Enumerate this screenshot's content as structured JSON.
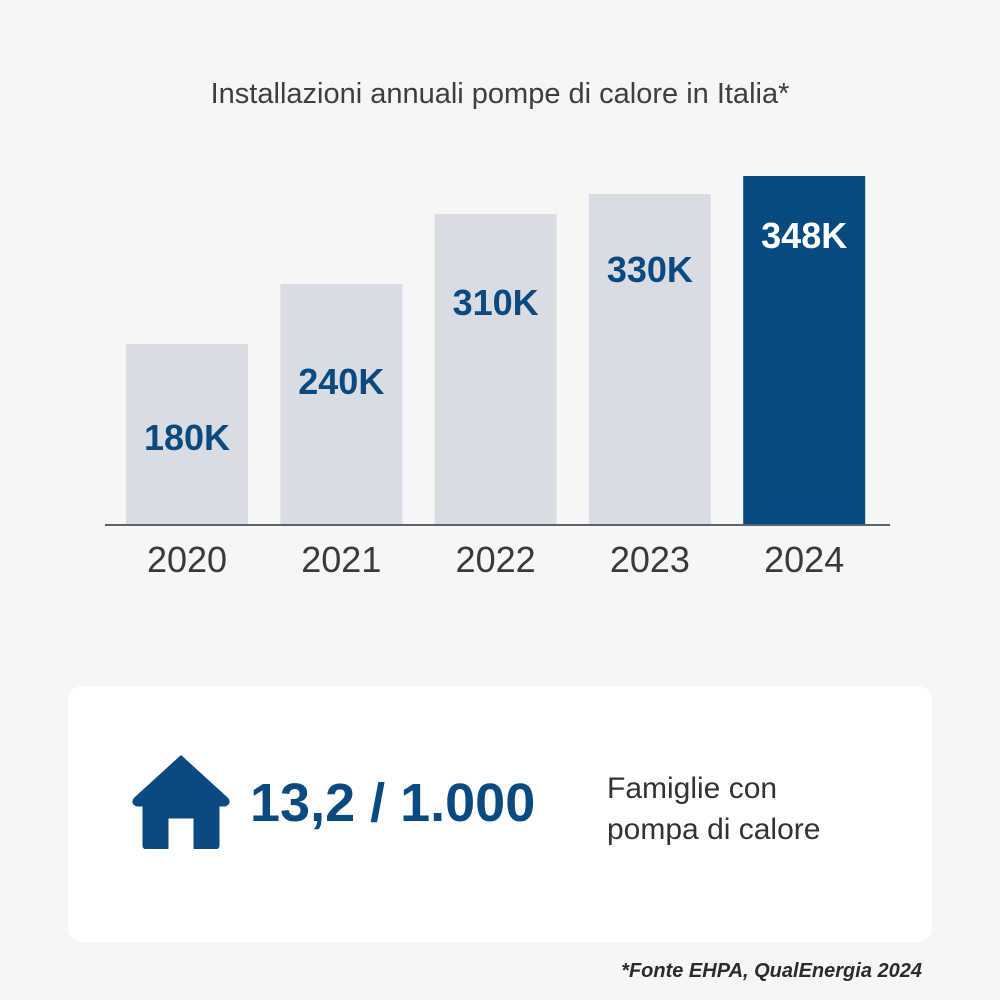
{
  "chart_data": {
    "type": "bar",
    "title": "Installazioni annuali pompe di calore in Italia*",
    "categories": [
      "2020",
      "2021",
      "2022",
      "2023",
      "2024"
    ],
    "values": [
      180,
      240,
      310,
      330,
      348
    ],
    "data_labels": [
      "180K",
      "240K",
      "310K",
      "330K",
      "348K"
    ],
    "xlabel": "",
    "ylabel": "",
    "grid": false,
    "highlight_category": "2024",
    "colors": {
      "bar": "#d9dde3",
      "highlight": "#054b80",
      "label": "#0a4a80",
      "highlight_label": "#ffffff",
      "axis": "#5a6470"
    }
  },
  "stat": {
    "icon": "house-icon",
    "value": "13,2 / 1.000",
    "description_line1": "Famiglie con",
    "description_line2": "pompa di calore"
  },
  "source": "*Fonte EHPA, QualEnergia 2024"
}
